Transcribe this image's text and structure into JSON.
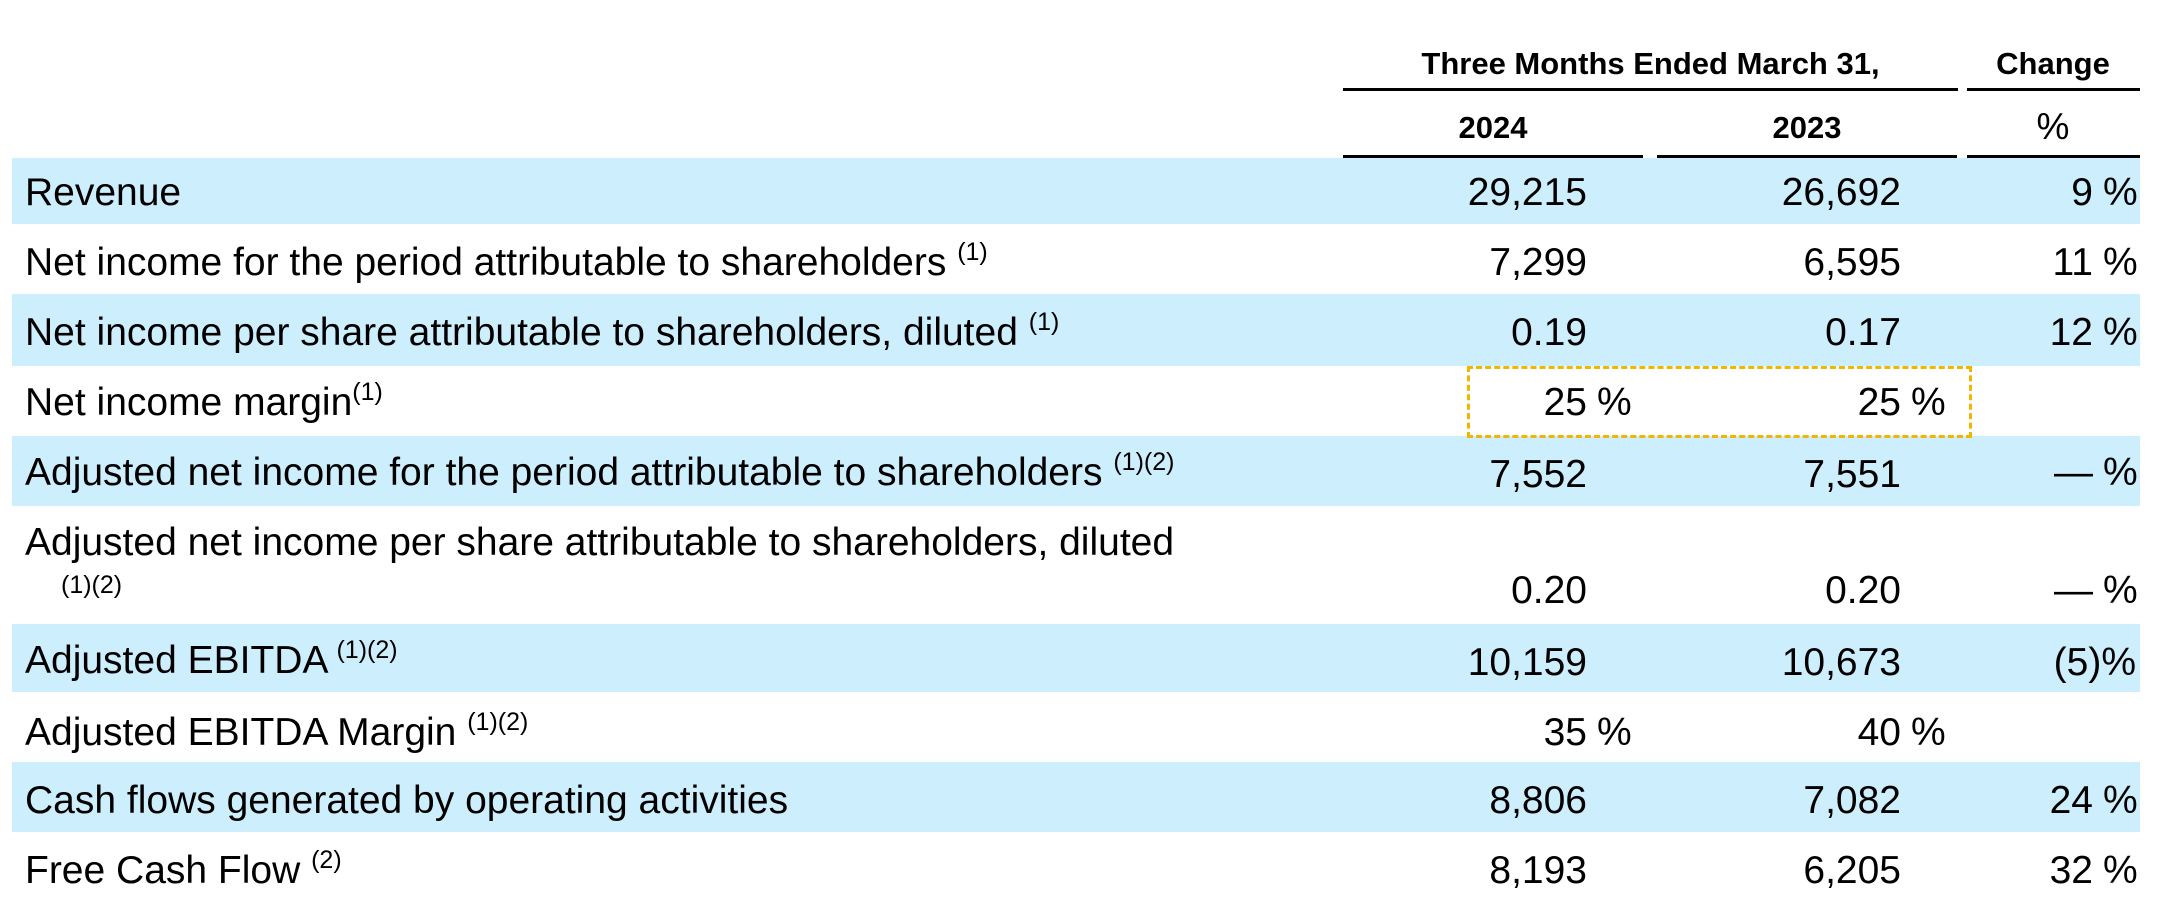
{
  "table": {
    "header": {
      "period": "Three Months Ended March 31,",
      "change": "Change",
      "col_2024": "2024",
      "col_2023": "2023",
      "change_unit": "%"
    },
    "rows": [
      {
        "label": "Revenue",
        "sup": "",
        "v2024": "29,215",
        "v2023": "26,692",
        "change": "9",
        "pct_2024": "",
        "pct_2023": "",
        "change_pct": "%"
      },
      {
        "label": "Net income for the period attributable to shareholders",
        "sup": "(1)",
        "v2024": "7,299",
        "v2023": "6,595",
        "change": "11",
        "pct_2024": "",
        "pct_2023": "",
        "change_pct": "%"
      },
      {
        "label": "Net income per share attributable to shareholders, diluted",
        "sup": "(1)",
        "v2024": "0.19",
        "v2023": "0.17",
        "change": "12",
        "pct_2024": "",
        "pct_2023": "",
        "change_pct": "%"
      },
      {
        "label": "Net income margin",
        "sup": "(1)",
        "v2024": "25",
        "v2023": "25",
        "change": "",
        "pct_2024": "%",
        "pct_2023": "%",
        "change_pct": ""
      },
      {
        "label": "Adjusted net income for the period attributable to shareholders",
        "sup": "(1)(2)",
        "v2024": "7,552",
        "v2023": "7,551",
        "change": "—",
        "pct_2024": "",
        "pct_2023": "",
        "change_pct": "%"
      },
      {
        "label": "Adjusted net income per share attributable to shareholders, diluted",
        "sup": "(1)(2)",
        "v2024": "0.20",
        "v2023": "0.20",
        "change": "—",
        "pct_2024": "",
        "pct_2023": "",
        "change_pct": "%"
      },
      {
        "label": "Adjusted EBITDA",
        "sup": "(1)(2)",
        "v2024": "10,159",
        "v2023": "10,673",
        "change": "(5)%",
        "pct_2024": "",
        "pct_2023": "",
        "change_pct": ""
      },
      {
        "label": "Adjusted EBITDA Margin",
        "sup": "(1)(2)",
        "v2024": "35",
        "v2023": "40",
        "change": "",
        "pct_2024": "%",
        "pct_2023": "%",
        "change_pct": ""
      },
      {
        "label": "Cash flows generated by operating activities",
        "sup": "",
        "v2024": "8,806",
        "v2023": "7,082",
        "change": "24",
        "pct_2024": "",
        "pct_2023": "",
        "change_pct": "%"
      },
      {
        "label": "Free Cash Flow",
        "sup": "(2)",
        "v2024": "8,193",
        "v2023": "6,205",
        "change": "32",
        "pct_2024": "",
        "pct_2023": "",
        "change_pct": "%"
      }
    ]
  },
  "colors": {
    "band": "#cdeefc",
    "highlight": "#f2b600",
    "text": "#000000"
  }
}
